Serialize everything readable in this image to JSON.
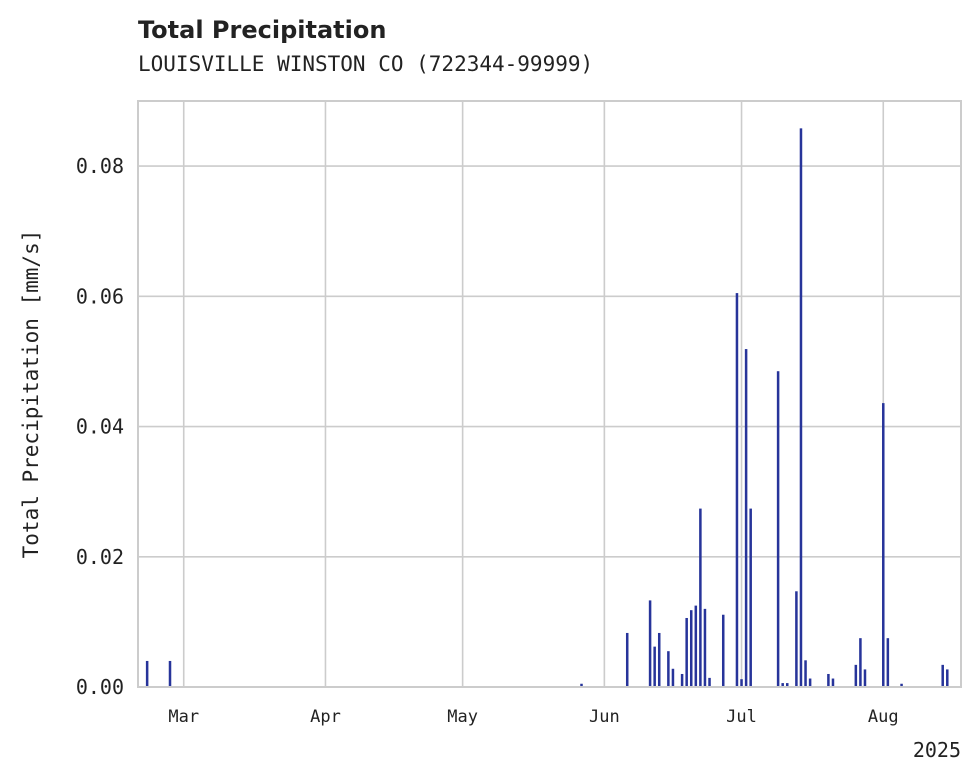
{
  "chart_data": {
    "type": "bar",
    "title": "Total Precipitation",
    "subtitle": "LOUISVILLE WINSTON CO (722344-99999)",
    "ylabel": "Total Precipitation [mm/s]",
    "xlabel": "",
    "year_label": "2025",
    "ylim": [
      0,
      0.09
    ],
    "xlim": [
      "2025-02-19",
      "2025-08-18"
    ],
    "yticks": [
      "0.00",
      "0.02",
      "0.04",
      "0.06",
      "0.08"
    ],
    "xticks": [
      {
        "label": "Mar",
        "date": "2025-03-01"
      },
      {
        "label": "Apr",
        "date": "2025-04-01"
      },
      {
        "label": "May",
        "date": "2025-05-01"
      },
      {
        "label": "Jun",
        "date": "2025-06-01"
      },
      {
        "label": "Jul",
        "date": "2025-07-01"
      },
      {
        "label": "Aug",
        "date": "2025-08-01"
      }
    ],
    "grid": true,
    "bar_color": "#27349a",
    "values": [
      {
        "date": "2025-02-21",
        "value": 0.004
      },
      {
        "date": "2025-02-26",
        "value": 0.004
      },
      {
        "date": "2025-05-27",
        "value": 0.0005
      },
      {
        "date": "2025-06-06",
        "value": 0.0083
      },
      {
        "date": "2025-06-11",
        "value": 0.0133
      },
      {
        "date": "2025-06-12",
        "value": 0.0062
      },
      {
        "date": "2025-06-13",
        "value": 0.0083
      },
      {
        "date": "2025-06-15",
        "value": 0.0055
      },
      {
        "date": "2025-06-16",
        "value": 0.0028
      },
      {
        "date": "2025-06-18",
        "value": 0.002
      },
      {
        "date": "2025-06-19",
        "value": 0.0106
      },
      {
        "date": "2025-06-20",
        "value": 0.0118
      },
      {
        "date": "2025-06-21",
        "value": 0.0125
      },
      {
        "date": "2025-06-22",
        "value": 0.0274
      },
      {
        "date": "2025-06-23",
        "value": 0.012
      },
      {
        "date": "2025-06-24",
        "value": 0.0014
      },
      {
        "date": "2025-06-27",
        "value": 0.0111
      },
      {
        "date": "2025-06-30",
        "value": 0.0605
      },
      {
        "date": "2025-07-01",
        "value": 0.0012
      },
      {
        "date": "2025-07-02",
        "value": 0.0519
      },
      {
        "date": "2025-07-03",
        "value": 0.0274
      },
      {
        "date": "2025-07-09",
        "value": 0.0485
      },
      {
        "date": "2025-07-10",
        "value": 0.0006
      },
      {
        "date": "2025-07-11",
        "value": 0.0006
      },
      {
        "date": "2025-07-13",
        "value": 0.0147
      },
      {
        "date": "2025-07-14",
        "value": 0.0858
      },
      {
        "date": "2025-07-15",
        "value": 0.0041
      },
      {
        "date": "2025-07-16",
        "value": 0.0013
      },
      {
        "date": "2025-07-20",
        "value": 0.002
      },
      {
        "date": "2025-07-21",
        "value": 0.0013
      },
      {
        "date": "2025-07-26",
        "value": 0.0034
      },
      {
        "date": "2025-07-27",
        "value": 0.0075
      },
      {
        "date": "2025-07-28",
        "value": 0.0027
      },
      {
        "date": "2025-08-01",
        "value": 0.0436
      },
      {
        "date": "2025-08-02",
        "value": 0.0075
      },
      {
        "date": "2025-08-05",
        "value": 0.0005
      },
      {
        "date": "2025-08-14",
        "value": 0.0034
      },
      {
        "date": "2025-08-15",
        "value": 0.0027
      }
    ]
  }
}
